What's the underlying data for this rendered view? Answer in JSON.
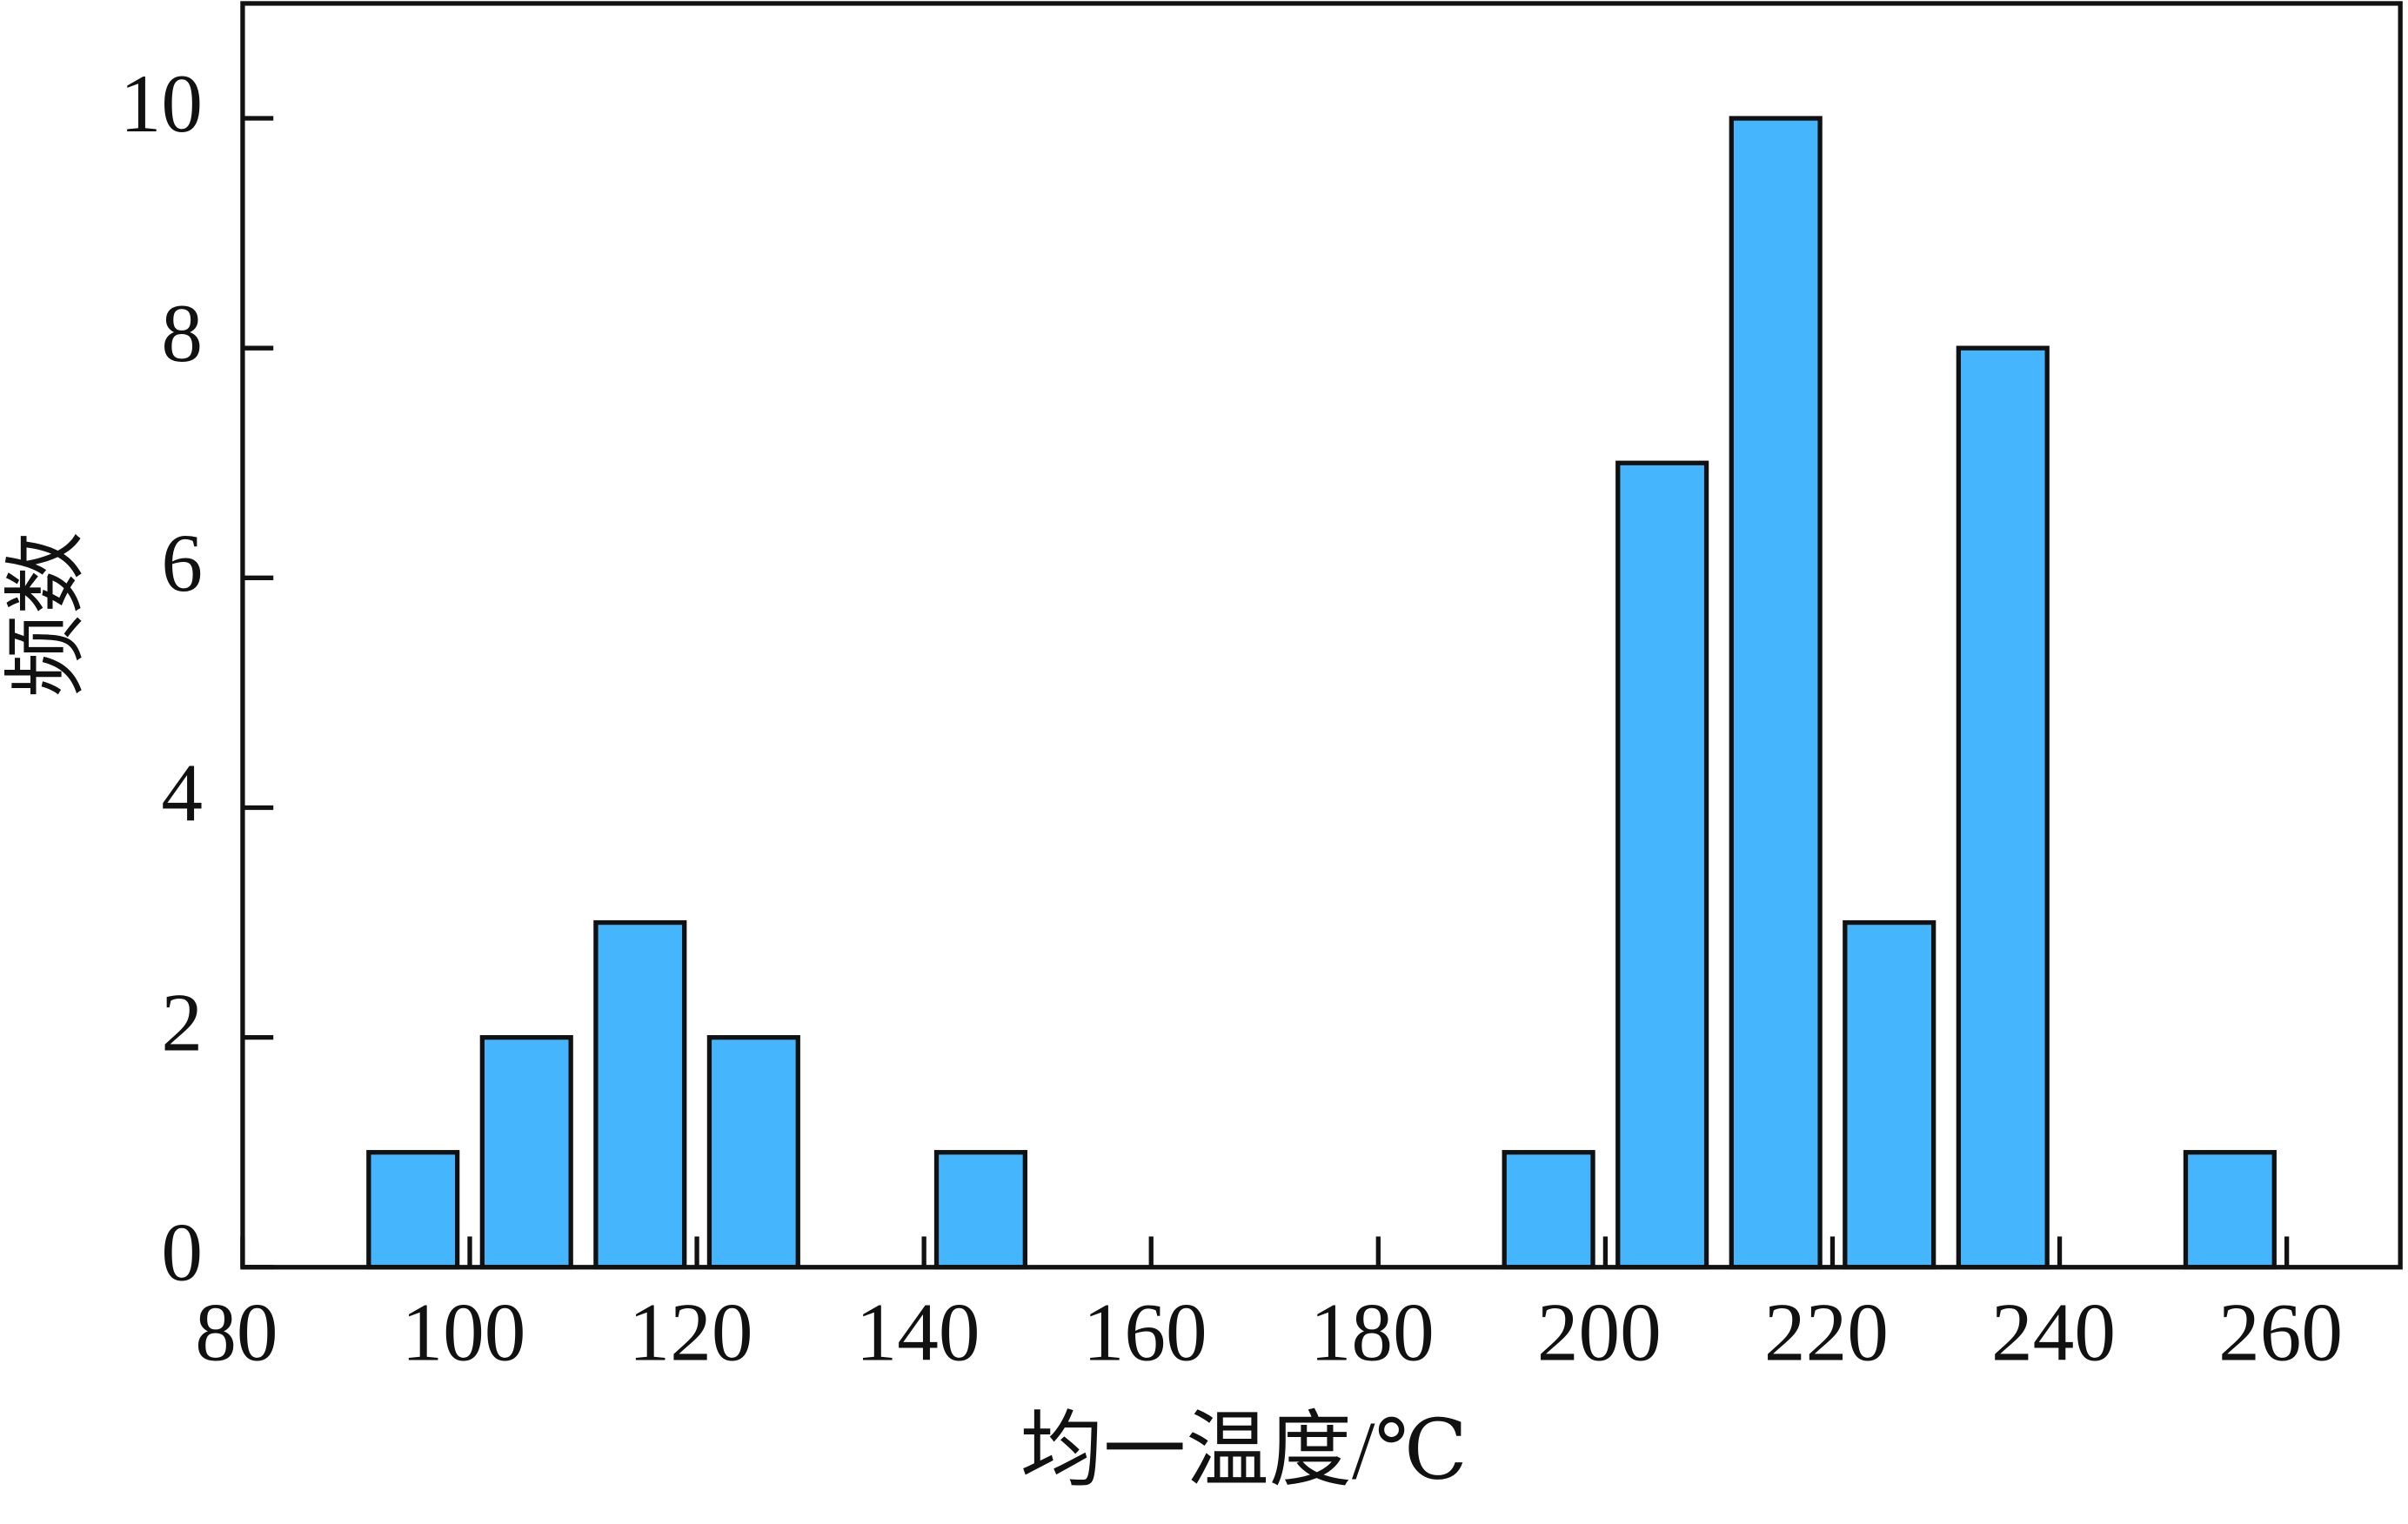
{
  "chart_data": {
    "type": "histogram",
    "x_label": "均一温度/℃",
    "y_label": "频数",
    "bins": [
      90,
      100,
      110,
      120,
      130,
      140,
      150,
      160,
      170,
      180,
      190,
      200,
      210,
      220,
      230,
      240,
      250,
      260
    ],
    "values": [
      1,
      2,
      3,
      2,
      0,
      1,
      0,
      0,
      0,
      0,
      1,
      7,
      10,
      3,
      8,
      0,
      1
    ],
    "color": "#45b6fe",
    "xlim": [
      80,
      270
    ],
    "xticks": [
      80,
      100,
      120,
      140,
      160,
      180,
      200,
      220,
      240,
      260
    ],
    "ylim": [
      0,
      11
    ],
    "yticks": [
      0,
      2,
      4,
      6,
      8,
      10
    ]
  }
}
